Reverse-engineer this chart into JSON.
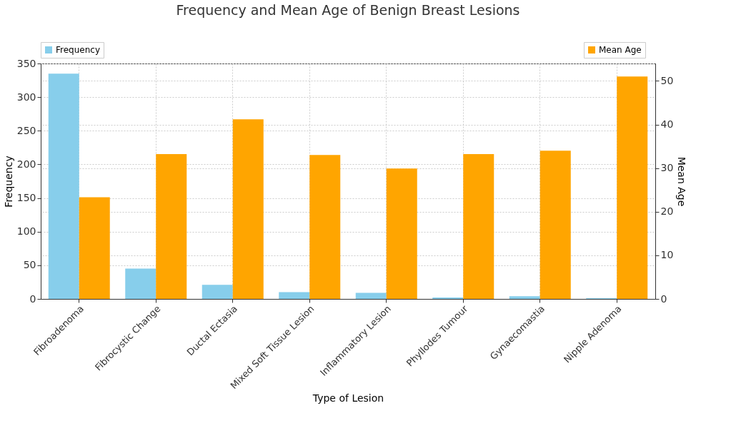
{
  "chart_data": {
    "type": "bar",
    "title": "Frequency and Mean Age of Benign Breast Lesions",
    "xlabel": "Type of Lesion",
    "ylabel": "Frequency",
    "y2label": "Mean Age",
    "categories": [
      "Fibroadenoma",
      "Fibrocystic Change",
      "Ductal Ectasia",
      "Mixed Soft Tissue Lesion",
      "Inflammatory Lesion",
      "Phyllodes Tumour",
      "Gynaecomastia",
      "Nipple Adenoma"
    ],
    "series": [
      {
        "name": "Frequency",
        "color": "#87ceeb",
        "values": [
          335,
          45,
          21,
          10,
          9,
          2,
          4,
          1
        ]
      },
      {
        "name": "Mean Age",
        "color": "#ffa500",
        "axis": "y2",
        "values": [
          23.3,
          33.2,
          41.2,
          33.0,
          29.9,
          33.2,
          34.0,
          51
        ]
      }
    ],
    "ylim": [
      0,
      350
    ],
    "yticks": [
      0,
      50,
      100,
      150,
      200,
      250,
      300,
      350
    ],
    "y2lim": [
      0,
      54
    ],
    "y2ticks": [
      0,
      10,
      20,
      30,
      40,
      50
    ],
    "grid": true,
    "legend": "top"
  }
}
